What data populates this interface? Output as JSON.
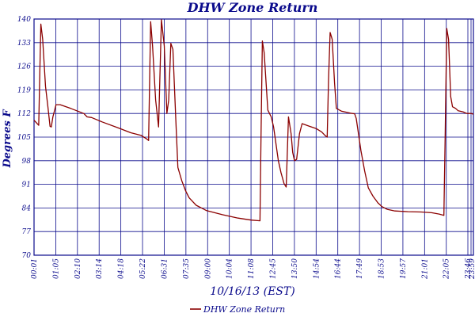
{
  "chart_data": {
    "type": "line",
    "title": "DHW Zone Return",
    "ylabel": "Degrees F",
    "xlabel": "10/16/13 (EST)",
    "ylim": [
      70,
      140
    ],
    "yticks": [
      70,
      77,
      84,
      91,
      98,
      105,
      112,
      119,
      126,
      133,
      140
    ],
    "xtick_labels": [
      "00:01",
      "01:05",
      "02:10",
      "03:14",
      "04:18",
      "05:22",
      "06:31",
      "07:35",
      "09:00",
      "10:04",
      "11:08",
      "12:45",
      "13:50",
      "14:54",
      "16:44",
      "17:49",
      "18:53",
      "19:57",
      "21:01",
      "22:05",
      "23:46",
      "23:59"
    ],
    "grid": true,
    "legend_position": "bottom-center",
    "colors": {
      "series": "#8b0000",
      "grid": "#0b0b8c",
      "text": "#0b0b8c"
    },
    "series": [
      {
        "name": "DHW Zone Return",
        "points": [
          [
            0,
            110
          ],
          [
            1.8,
            108.5
          ],
          [
            2.6,
            138.5
          ],
          [
            3.3,
            134
          ],
          [
            4.4,
            120
          ],
          [
            5.3,
            114
          ],
          [
            6.1,
            108.2
          ],
          [
            6.6,
            108
          ],
          [
            7.2,
            111
          ],
          [
            8.4,
            114.6
          ],
          [
            10,
            114.6
          ],
          [
            14,
            113.5
          ],
          [
            19,
            112
          ],
          [
            20.3,
            111
          ],
          [
            22,
            110.8
          ],
          [
            26,
            109.5
          ],
          [
            32,
            107.8
          ],
          [
            37,
            106.3
          ],
          [
            41,
            105.5
          ],
          [
            43.2,
            104.4
          ],
          [
            43.8,
            104
          ],
          [
            44.6,
            139.2
          ],
          [
            45.3,
            132
          ],
          [
            46.5,
            116
          ],
          [
            47.6,
            108
          ],
          [
            48.7,
            139.8
          ],
          [
            49.8,
            132
          ],
          [
            50.8,
            112
          ],
          [
            51.5,
            116
          ],
          [
            52.3,
            132.8
          ],
          [
            53.1,
            131
          ],
          [
            54.2,
            110
          ],
          [
            55,
            96
          ],
          [
            56.5,
            92
          ],
          [
            58,
            89
          ],
          [
            59.3,
            87
          ],
          [
            62,
            84.8
          ],
          [
            66,
            83.2
          ],
          [
            72,
            82
          ],
          [
            78,
            81
          ],
          [
            83,
            80.4
          ],
          [
            86.4,
            80.2
          ],
          [
            86.8,
            105
          ],
          [
            87.3,
            133.5
          ],
          [
            88,
            130
          ],
          [
            89.4,
            113
          ],
          [
            90.7,
            111
          ],
          [
            91.6,
            108
          ],
          [
            92.5,
            103
          ],
          [
            93.4,
            98
          ],
          [
            94.4,
            94.5
          ],
          [
            95.6,
            91.2
          ],
          [
            96.4,
            90.2
          ],
          [
            97.3,
            111
          ],
          [
            98.3,
            106
          ],
          [
            98.9,
            100.5
          ],
          [
            99.6,
            98
          ],
          [
            100.4,
            98.4
          ],
          [
            101.5,
            106
          ],
          [
            102.5,
            109
          ],
          [
            105,
            108.3
          ],
          [
            108,
            107.5
          ],
          [
            110,
            106.5
          ],
          [
            111.4,
            105.4
          ],
          [
            112.1,
            105
          ],
          [
            112.6,
            122
          ],
          [
            113.2,
            136
          ],
          [
            114,
            134
          ],
          [
            114.9,
            121
          ],
          [
            115.6,
            113.5
          ],
          [
            117.5,
            112.7
          ],
          [
            121,
            112.1
          ],
          [
            122.6,
            111.9
          ],
          [
            123.2,
            110.5
          ],
          [
            125,
            101
          ],
          [
            126.4,
            95
          ],
          [
            127.8,
            90
          ],
          [
            129.6,
            87.5
          ],
          [
            131.5,
            85.5
          ],
          [
            133,
            84.4
          ],
          [
            135,
            83.6
          ],
          [
            138,
            83.1
          ],
          [
            143,
            82.9
          ],
          [
            148,
            82.8
          ],
          [
            152,
            82.6
          ],
          [
            154.9,
            82.2
          ],
          [
            156.7,
            81.8
          ],
          [
            157.2,
            105
          ],
          [
            157.8,
            137.2
          ],
          [
            158.5,
            134
          ],
          [
            159.3,
            117
          ],
          [
            160,
            114
          ],
          [
            161.2,
            113.5
          ],
          [
            162.2,
            112.8
          ],
          [
            164,
            112.5
          ],
          [
            165.5,
            112
          ],
          [
            167.2,
            112
          ],
          [
            168,
            111.8
          ]
        ]
      }
    ]
  }
}
